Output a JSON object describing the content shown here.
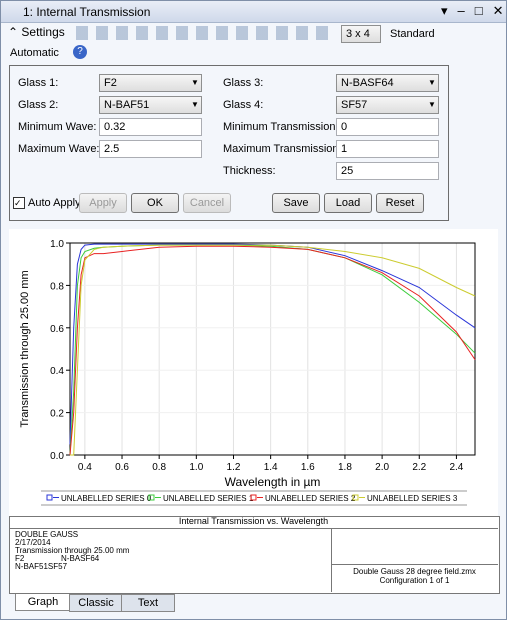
{
  "window": {
    "title": "1: Internal Transmission"
  },
  "toolbar": {
    "settings": "Settings",
    "layout": "3 x 4",
    "style": "Standard",
    "scale": "Automatic"
  },
  "settings": {
    "fields": [
      {
        "label": "Glass 1:",
        "value": "F2"
      },
      {
        "label": "Glass 2:",
        "value": "N-BAF51"
      },
      {
        "label": "Minimum Wave:",
        "value": "0.32"
      },
      {
        "label": "Maximum Wave:",
        "value": "2.5"
      },
      {
        "label": "Glass 3:",
        "value": "N-BASF64"
      },
      {
        "label": "Glass 4:",
        "value": "SF57"
      },
      {
        "label": "Minimum Transmission:",
        "value": "0"
      },
      {
        "label": "Maximum Transmission:",
        "value": "1"
      },
      {
        "label": "Thickness:",
        "value": "25"
      }
    ],
    "auto_apply": "Auto Apply",
    "buttons": [
      "Apply",
      "OK",
      "Cancel",
      "Save",
      "Load",
      "Reset"
    ]
  },
  "chart_data": {
    "type": "line",
    "title": "Internal Transmission vs. Wavelength",
    "x_label": "Wavelength in µm",
    "y_label": "Transmission through 25.00 mm",
    "x": [
      0.32,
      0.34,
      0.36,
      0.38,
      0.4,
      0.45,
      0.5,
      0.6,
      0.8,
      1.0,
      1.2,
      1.4,
      1.6,
      1.8,
      2.0,
      2.2,
      2.4,
      2.5
    ],
    "series": [
      {
        "name": "UNLABELLED SERIES 0",
        "color": "#2a36d8",
        "values": [
          0.05,
          0.6,
          0.9,
          0.97,
          0.99,
          0.995,
          0.995,
          0.995,
          0.995,
          0.995,
          0.995,
          0.99,
          0.98,
          0.94,
          0.87,
          0.79,
          0.66,
          0.6
        ]
      },
      {
        "name": "UNLABELLED SERIES 1",
        "color": "#3ccc3c",
        "values": [
          0,
          0.3,
          0.8,
          0.93,
          0.96,
          0.975,
          0.98,
          0.985,
          0.99,
          0.99,
          0.99,
          0.985,
          0.97,
          0.93,
          0.85,
          0.72,
          0.57,
          0.48
        ]
      },
      {
        "name": "UNLABELLED SERIES 2",
        "color": "#e82222",
        "values": [
          0,
          0.2,
          0.6,
          0.85,
          0.93,
          0.95,
          0.95,
          0.96,
          0.98,
          0.985,
          0.985,
          0.98,
          0.97,
          0.93,
          0.86,
          0.75,
          0.58,
          0.45
        ]
      },
      {
        "name": "UNLABELLED SERIES 3",
        "color": "#cccc30",
        "values": [
          0,
          0,
          0.4,
          0.8,
          0.92,
          0.97,
          0.98,
          0.985,
          0.99,
          0.99,
          0.99,
          0.99,
          0.98,
          0.96,
          0.93,
          0.88,
          0.79,
          0.75
        ]
      }
    ],
    "xlim": [
      0.32,
      2.5
    ],
    "ylim": [
      0,
      1
    ],
    "xticks": [
      0.4,
      0.6,
      0.8,
      {
        "value": 1,
        "label": "1.0"
      },
      1.2,
      1.4,
      1.6,
      1.8,
      {
        "value": 2,
        "label": "2.0"
      },
      2.2,
      2.4
    ],
    "yticks": [
      {
        "value": 0,
        "label": "0.0"
      },
      0.2,
      0.4,
      0.6,
      0.8,
      {
        "value": 1,
        "label": "1.0"
      }
    ],
    "grid": true
  },
  "info": {
    "left": [
      "DOUBLE GAUSS",
      "2/17/2014",
      "Transmission through 25.00 mm",
      "F2",
      "N-BASF64",
      "N-BAF51SF57"
    ],
    "right": [
      "Double Gauss 28 degree field.zmx",
      "Configuration 1 of 1"
    ]
  },
  "tabs": [
    "Graph",
    "Classic",
    "Text"
  ]
}
